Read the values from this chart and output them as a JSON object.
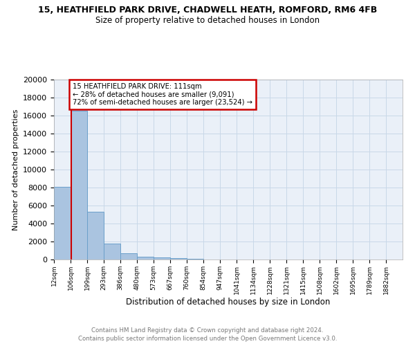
{
  "title": "15, HEATHFIELD PARK DRIVE, CHADWELL HEATH, ROMFORD, RM6 4FB",
  "subtitle": "Size of property relative to detached houses in London",
  "xlabel": "Distribution of detached houses by size in London",
  "ylabel": "Number of detached properties",
  "bin_labels": [
    "12sqm",
    "106sqm",
    "199sqm",
    "293sqm",
    "386sqm",
    "480sqm",
    "573sqm",
    "667sqm",
    "760sqm",
    "854sqm",
    "947sqm",
    "1041sqm",
    "1134sqm",
    "1228sqm",
    "1321sqm",
    "1415sqm",
    "1508sqm",
    "1602sqm",
    "1695sqm",
    "1789sqm",
    "1882sqm"
  ],
  "bar_values": [
    8100,
    16500,
    5300,
    1750,
    700,
    300,
    200,
    150,
    50,
    0,
    0,
    0,
    0,
    0,
    0,
    0,
    0,
    0,
    0,
    0,
    0
  ],
  "bar_color": "#aac4e0",
  "bar_edge_color": "#6a9fca",
  "property_line_x": 111,
  "property_line_color": "#cc0000",
  "annotation_text": "15 HEATHFIELD PARK DRIVE: 111sqm\n← 28% of detached houses are smaller (9,091)\n72% of semi-detached houses are larger (23,524) →",
  "annotation_box_color": "#cc0000",
  "ylim": [
    0,
    20000
  ],
  "yticks": [
    0,
    2000,
    4000,
    6000,
    8000,
    10000,
    12000,
    14000,
    16000,
    18000,
    20000
  ],
  "footer_line1": "Contains HM Land Registry data © Crown copyright and database right 2024.",
  "footer_line2": "Contains public sector information licensed under the Open Government Licence v3.0.",
  "bg_color": "#ffffff",
  "ax_bg_color": "#eaf0f8",
  "grid_color": "#c8d8e8",
  "bin_starts": [
    12,
    106,
    199,
    293,
    386,
    480,
    573,
    667,
    760,
    854,
    947,
    1041,
    1134,
    1228,
    1321,
    1415,
    1508,
    1602,
    1695,
    1789,
    1882
  ],
  "bin_width": 93,
  "title_fontsize": 9,
  "subtitle_fontsize": 8.5,
  "ylabel_fontsize": 8,
  "xlabel_fontsize": 8.5,
  "ytick_fontsize": 8,
  "xtick_fontsize": 6.5
}
